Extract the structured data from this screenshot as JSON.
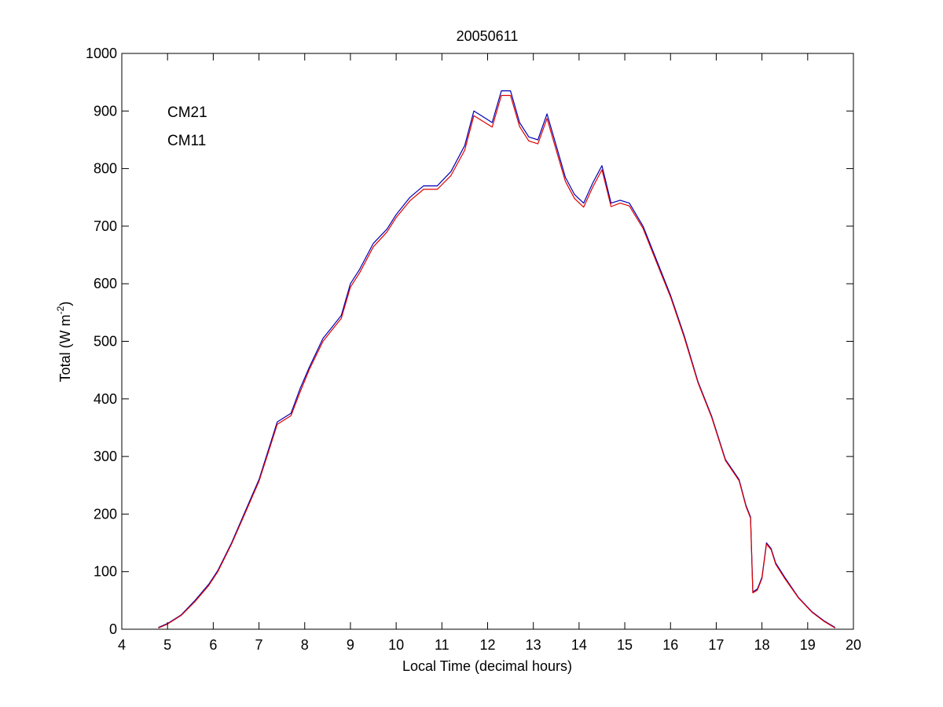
{
  "chart_data": {
    "type": "line",
    "title": "20050611",
    "xlabel": "Local Time (decimal hours)",
    "ylabel": {
      "main": "Total (W m",
      "exponent": "-2",
      "close": ")"
    },
    "xlim": [
      4,
      20
    ],
    "ylim": [
      0,
      1000
    ],
    "xticks": [
      4,
      5,
      6,
      7,
      8,
      9,
      10,
      11,
      12,
      13,
      14,
      15,
      16,
      17,
      18,
      19,
      20
    ],
    "yticks": [
      0,
      100,
      200,
      300,
      400,
      500,
      600,
      700,
      800,
      900,
      1000
    ],
    "grid": false,
    "legend_position": "top-left",
    "series": [
      {
        "name": "CM21",
        "color": "#0000b4",
        "x": [
          4.8,
          5.0,
          5.3,
          5.6,
          5.9,
          6.1,
          6.4,
          6.7,
          7.0,
          7.2,
          7.4,
          7.7,
          7.9,
          8.1,
          8.4,
          8.6,
          8.8,
          9.0,
          9.2,
          9.5,
          9.8,
          10.0,
          10.3,
          10.6,
          10.9,
          11.2,
          11.5,
          11.7,
          11.9,
          12.1,
          12.3,
          12.5,
          12.7,
          12.9,
          13.1,
          13.3,
          13.5,
          13.7,
          13.9,
          14.1,
          14.3,
          14.5,
          14.7,
          14.9,
          15.1,
          15.4,
          15.7,
          16.0,
          16.3,
          16.6,
          16.9,
          17.2,
          17.5,
          17.65,
          17.75,
          17.8,
          17.9,
          18.0,
          18.1,
          18.2,
          18.3,
          18.5,
          18.8,
          19.1,
          19.35,
          19.6
        ],
        "y": [
          3,
          10,
          25,
          50,
          78,
          102,
          150,
          205,
          260,
          310,
          360,
          375,
          418,
          455,
          505,
          525,
          545,
          600,
          625,
          670,
          695,
          720,
          750,
          770,
          770,
          795,
          840,
          900,
          890,
          880,
          935,
          935,
          880,
          855,
          850,
          895,
          840,
          785,
          755,
          740,
          775,
          805,
          740,
          745,
          740,
          700,
          640,
          580,
          510,
          430,
          370,
          295,
          260,
          215,
          195,
          65,
          70,
          90,
          150,
          140,
          115,
          90,
          55,
          30,
          15,
          3
        ]
      },
      {
        "name": "CM11",
        "color": "#e00000",
        "x": [
          4.8,
          5.0,
          5.3,
          5.6,
          5.9,
          6.1,
          6.4,
          6.7,
          7.0,
          7.2,
          7.4,
          7.7,
          7.9,
          8.1,
          8.4,
          8.6,
          8.8,
          9.0,
          9.2,
          9.5,
          9.8,
          10.0,
          10.3,
          10.6,
          10.9,
          11.2,
          11.5,
          11.7,
          11.9,
          12.1,
          12.3,
          12.5,
          12.7,
          12.9,
          13.1,
          13.3,
          13.5,
          13.7,
          13.9,
          14.1,
          14.3,
          14.5,
          14.7,
          14.9,
          15.1,
          15.4,
          15.7,
          16.0,
          16.3,
          16.6,
          16.9,
          17.2,
          17.5,
          17.65,
          17.75,
          17.8,
          17.9,
          18.0,
          18.1,
          18.2,
          18.3,
          18.5,
          18.8,
          19.1,
          19.35,
          19.6
        ],
        "y": [
          2,
          9,
          24,
          48,
          76,
          100,
          148,
          202,
          257,
          306,
          356,
          371,
          412,
          451,
          500,
          520,
          540,
          594,
          619,
          664,
          690,
          715,
          744,
          764,
          764,
          788,
          832,
          892,
          882,
          872,
          927,
          927,
          873,
          848,
          843,
          887,
          832,
          778,
          748,
          733,
          768,
          798,
          734,
          740,
          735,
          696,
          636,
          577,
          507,
          428,
          368,
          293,
          258,
          213,
          193,
          63,
          68,
          88,
          148,
          138,
          113,
          88,
          54,
          29,
          14,
          2
        ]
      }
    ]
  }
}
